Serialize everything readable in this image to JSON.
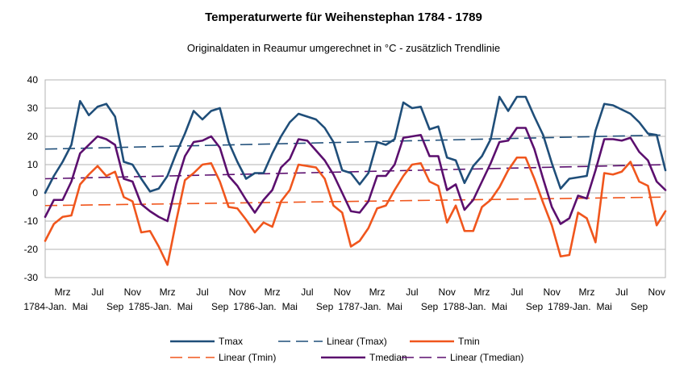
{
  "chart_data": {
    "type": "line",
    "title": "Temperaturwerte für Weihenstephan 1784 - 1789",
    "subtitle": "Originaldaten in Reaumur umgerechnet in °C - zusätzlich Trendlinie",
    "ylim": [
      -30,
      40
    ],
    "yticks": [
      -30,
      -20,
      -10,
      0,
      10,
      20,
      30,
      40
    ],
    "grid": true,
    "legend_position": "bottom",
    "x_tick_labels": [
      {
        "index": 2,
        "label": "Mrz",
        "row": 1
      },
      {
        "index": 6,
        "label": "Jul",
        "row": 1
      },
      {
        "index": 10,
        "label": "Nov",
        "row": 1
      },
      {
        "index": 0,
        "label": "1784-Jan.",
        "row": 2
      },
      {
        "index": 4,
        "label": "Mai",
        "row": 2
      },
      {
        "index": 8,
        "label": "Sep",
        "row": 2
      },
      {
        "index": 14,
        "label": "Mrz",
        "row": 1
      },
      {
        "index": 18,
        "label": "Jul",
        "row": 1
      },
      {
        "index": 22,
        "label": "Nov",
        "row": 1
      },
      {
        "index": 12,
        "label": "1785-Jan.",
        "row": 2
      },
      {
        "index": 16,
        "label": "Mai",
        "row": 2
      },
      {
        "index": 20,
        "label": "Sep",
        "row": 2
      },
      {
        "index": 26,
        "label": "Mrz",
        "row": 1
      },
      {
        "index": 30,
        "label": "Jul",
        "row": 1
      },
      {
        "index": 34,
        "label": "Nov",
        "row": 1
      },
      {
        "index": 24,
        "label": "1786-Jan.",
        "row": 2
      },
      {
        "index": 28,
        "label": "Mai",
        "row": 2
      },
      {
        "index": 32,
        "label": "Sep",
        "row": 2
      },
      {
        "index": 38,
        "label": "Mrz",
        "row": 1
      },
      {
        "index": 42,
        "label": "Jul",
        "row": 1
      },
      {
        "index": 46,
        "label": "Nov",
        "row": 1
      },
      {
        "index": 36,
        "label": "1787-Jan.",
        "row": 2
      },
      {
        "index": 40,
        "label": "Mai",
        "row": 2
      },
      {
        "index": 44,
        "label": "Sep",
        "row": 2
      },
      {
        "index": 50,
        "label": "Mrz",
        "row": 1
      },
      {
        "index": 54,
        "label": "Jul",
        "row": 1
      },
      {
        "index": 58,
        "label": "Nov",
        "row": 1
      },
      {
        "index": 48,
        "label": "1788-Jan.",
        "row": 2
      },
      {
        "index": 52,
        "label": "Mai",
        "row": 2
      },
      {
        "index": 56,
        "label": "Sep",
        "row": 2
      },
      {
        "index": 62,
        "label": "Mrz",
        "row": 1
      },
      {
        "index": 66,
        "label": "Jul",
        "row": 1
      },
      {
        "index": 70,
        "label": "Nov",
        "row": 1
      },
      {
        "index": 60,
        "label": "1789-Jan.",
        "row": 2
      },
      {
        "index": 64,
        "label": "Mai",
        "row": 2
      },
      {
        "index": 68,
        "label": "Sep",
        "row": 2
      }
    ],
    "series": [
      {
        "name": "Tmax",
        "color": "#1f4e79",
        "style": "solid",
        "values": [
          0,
          6,
          11,
          17,
          32.5,
          27.5,
          30.5,
          31.5,
          27,
          11,
          10,
          5,
          0.5,
          1.5,
          6,
          14,
          21,
          29,
          26,
          29,
          30,
          18,
          11,
          5,
          7,
          7,
          14,
          20,
          25,
          28,
          27,
          26,
          23,
          18,
          8,
          7,
          3,
          7,
          18,
          17,
          19,
          32,
          30,
          30.5,
          22.5,
          23.5,
          12.5,
          11.5,
          3.5,
          9.5,
          13,
          19,
          34,
          29,
          34,
          34,
          27,
          20.5,
          10.5,
          1.5,
          5,
          5.5,
          6,
          22,
          31.5,
          31,
          29.5,
          28,
          25,
          21,
          20.5,
          8
        ]
      },
      {
        "name": "Linear (Tmax)",
        "color": "#1f4e79",
        "style": "dashed",
        "values": [
          15.5,
          20.5
        ]
      },
      {
        "name": "Tmin",
        "color": "#f0561d",
        "style": "solid",
        "values": [
          -17,
          -11,
          -8.5,
          -8,
          3,
          6.5,
          9.5,
          6,
          7.5,
          -1.5,
          -3,
          -14,
          -13.5,
          -19,
          -25.5,
          -10,
          4.5,
          7,
          10,
          10.5,
          4,
          -5,
          -5.5,
          -9.5,
          -14,
          -10.5,
          -12,
          -3,
          1,
          10,
          9.5,
          9,
          5,
          -4.5,
          -7,
          -19,
          -17,
          -12.5,
          -5.5,
          -4.5,
          1,
          6,
          10,
          10.5,
          4,
          2.5,
          -10.5,
          -4.5,
          -13.5,
          -13.5,
          -5,
          -2.5,
          2,
          8,
          12.5,
          12.5,
          5,
          -3.5,
          -11.5,
          -22.5,
          -22,
          -7,
          -9,
          -17.5,
          7,
          6.5,
          7.5,
          11,
          4,
          2.5,
          -11.5,
          -6.5
        ]
      },
      {
        "name": "Linear (Tmin)",
        "color": "#f0561d",
        "style": "dashed",
        "values": [
          -4.5,
          -1.5
        ]
      },
      {
        "name": "Tmedian",
        "color": "#5b0f6e",
        "style": "solid",
        "values": [
          -8.5,
          -2.5,
          -2.5,
          4,
          14,
          17,
          20,
          19,
          17,
          5,
          4,
          -4,
          -6.5,
          -8.5,
          -10,
          3,
          13,
          18,
          18.5,
          20,
          16,
          6,
          2.5,
          -2.5,
          -7,
          -2.5,
          1,
          9,
          12,
          19,
          18.5,
          15,
          11.5,
          6.5,
          0,
          -6.5,
          -7,
          -3,
          6,
          6,
          10,
          19.5,
          20,
          20.5,
          13,
          13,
          1,
          3,
          -6,
          -2.5,
          4,
          10.5,
          18,
          18.5,
          23,
          23,
          15.5,
          5,
          -5,
          -11,
          -9,
          -1,
          -2,
          8,
          19,
          19,
          18.5,
          19.5,
          14.5,
          11.5,
          4,
          1
        ]
      },
      {
        "name": "Linear (Tmedian)",
        "color": "#5b0f6e",
        "style": "dashed",
        "values": [
          5,
          10
        ]
      }
    ]
  }
}
